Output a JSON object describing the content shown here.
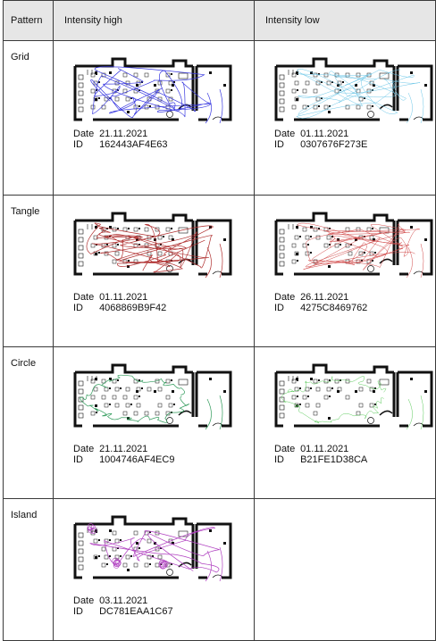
{
  "headers": {
    "pattern": "Pattern",
    "high": "Intensity high",
    "low": "Intensity low"
  },
  "labels": {
    "date": "Date",
    "id": "ID"
  },
  "rows": [
    {
      "pattern": "Grid",
      "high": {
        "date": "21.11.2021",
        "id": "162443AF4E63",
        "color": "#3a3ae0"
      },
      "low": {
        "date": "01.11.2021",
        "id": "0307676F273E",
        "color": "#6cc7e8"
      }
    },
    {
      "pattern": "Tangle",
      "high": {
        "date": "01.11.2021",
        "id": "4068869B9F42",
        "color": "#b03030"
      },
      "low": {
        "date": "26.11.2021",
        "id": "4275C8469762",
        "color": "#d24a4a"
      }
    },
    {
      "pattern": "Circle",
      "high": {
        "date": "21.11.2021",
        "id": "1004746AF4EC9",
        "color": "#2f9a5a"
      },
      "low": {
        "date": "01.11.2021",
        "id": "B21FE1D38CA",
        "color": "#5ccb5c"
      }
    },
    {
      "pattern": "Island",
      "high": {
        "date": "03.11.2021",
        "id": "DC781EAA1C67",
        "color": "#b040c0"
      }
    }
  ]
}
